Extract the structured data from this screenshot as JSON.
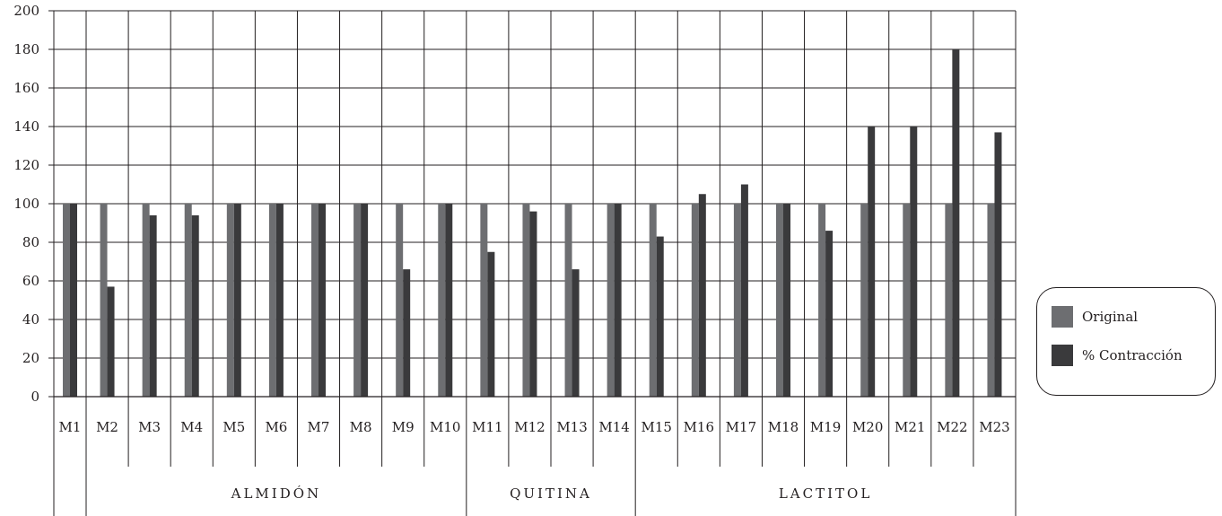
{
  "chart_data": {
    "type": "bar",
    "title": "",
    "xlabel": "",
    "ylabel": "",
    "ylim": [
      0,
      200
    ],
    "yticks": [
      "0",
      "20",
      "40",
      "60",
      "80",
      "100",
      "120",
      "140",
      "160",
      "180",
      "200"
    ],
    "grid": true,
    "legend_position": "right",
    "categories": [
      "M1",
      "M2",
      "M3",
      "M4",
      "M5",
      "M6",
      "M7",
      "M8",
      "M9",
      "M10",
      "M11",
      "M12",
      "M13",
      "M14",
      "M15",
      "M16",
      "M17",
      "M18",
      "M19",
      "M20",
      "M21",
      "M22",
      "M23"
    ],
    "groups": [
      {
        "label": "ALMIDÓN",
        "categories": [
          "M2",
          "M3",
          "M4",
          "M5",
          "M6",
          "M7",
          "M8",
          "M9",
          "M10"
        ]
      },
      {
        "label": "QUITINA",
        "categories": [
          "M11",
          "M12",
          "M13",
          "M14"
        ]
      },
      {
        "label": "LACTITOL",
        "categories": [
          "M15",
          "M16",
          "M17",
          "M18",
          "M19",
          "M20",
          "M21",
          "M22",
          "M23"
        ]
      }
    ],
    "series": [
      {
        "name": "Original",
        "color": "#6d6e71",
        "values": [
          100,
          100,
          100,
          100,
          100,
          100,
          100,
          100,
          100,
          100,
          100,
          100,
          100,
          100,
          100,
          100,
          100,
          100,
          100,
          100,
          100,
          100,
          100
        ]
      },
      {
        "name": "% Contracción",
        "color": "#3a3a3c",
        "values": [
          100,
          57,
          94,
          94,
          100,
          100,
          100,
          100,
          66,
          100,
          75,
          96,
          66,
          100,
          83,
          105,
          110,
          100,
          86,
          140,
          140,
          180,
          137
        ]
      }
    ]
  }
}
